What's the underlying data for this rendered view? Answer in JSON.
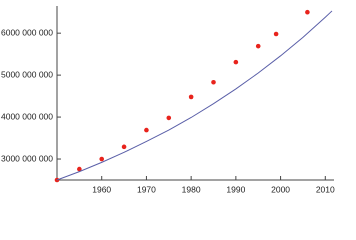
{
  "chart_data": {
    "type": "scatter",
    "xlim": [
      1950,
      2011.5
    ],
    "ylim": [
      2500000000,
      6600000000
    ],
    "xticks": [
      1960,
      1970,
      1980,
      1990,
      2000,
      2010
    ],
    "yticks": [
      {
        "value": 3000000000,
        "label": "3000 000 000"
      },
      {
        "value": 4000000000,
        "label": "4000 000 000"
      },
      {
        "value": 5000000000,
        "label": "5000 000 000"
      },
      {
        "value": 6000000000,
        "label": "6000 000 000"
      }
    ],
    "series": [
      {
        "type": "scatter",
        "color": "#e8231c",
        "x": [
          1950,
          1955,
          1960,
          1965,
          1970,
          1975,
          1980,
          1985,
          1990,
          1995,
          1999,
          2006
        ],
        "values": [
          2500000000,
          2760000000,
          3000000000,
          3290000000,
          3690000000,
          3980000000,
          4480000000,
          4830000000,
          5310000000,
          5690000000,
          5980000000,
          6500000000
        ]
      },
      {
        "type": "line",
        "color": "#5a5fa8",
        "x": [
          1950,
          1955,
          1960,
          1965,
          1970,
          1975,
          1980,
          1985,
          1990,
          1995,
          2000,
          2005,
          2010,
          2011.5
        ],
        "values": [
          2500000000,
          2700000000,
          2920000000,
          3160000000,
          3420000000,
          3690000000,
          3990000000,
          4320000000,
          4670000000,
          5050000000,
          5460000000,
          5900000000,
          6380000000,
          6530000000
        ]
      }
    ]
  }
}
